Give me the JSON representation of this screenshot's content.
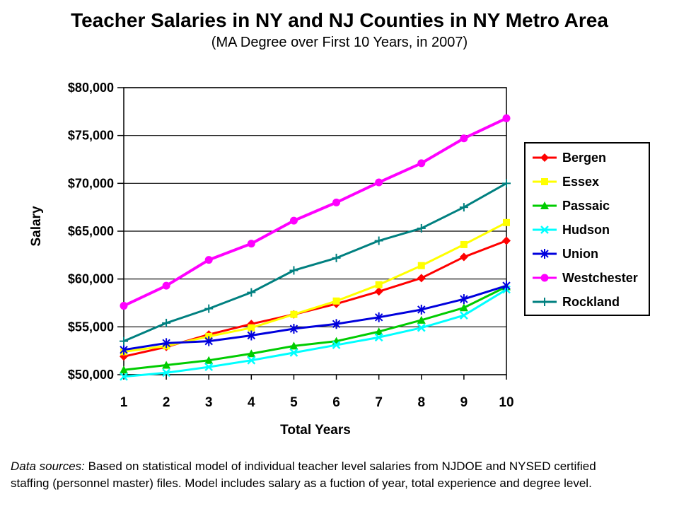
{
  "slide": {
    "title": "Teacher Salaries in NY and NJ Counties in NY Metro Area",
    "subtitle": "(MA Degree over First 10 Years, in 2007)",
    "footer": {
      "prefix": "Data sources:",
      "line1": " Based on statistical model of individual teacher level salaries from NJDOE and NYSED certified",
      "line2": "staffing (personnel master) files. Model includes salary as a fuction of year, total experience and degree level."
    }
  },
  "chart_data": {
    "type": "line",
    "title": "Teacher Salaries in NY and NJ Counties in NY Metro Area",
    "subtitle": "(MA Degree over First 10 Years, in 2007)",
    "xlabel": "Total Years",
    "ylabel": "Salary",
    "x": [
      1,
      2,
      3,
      4,
      5,
      6,
      7,
      8,
      9,
      10
    ],
    "ylim": [
      50000,
      80000
    ],
    "y_tick_step": 5000,
    "y_tick_labels": [
      "$50,000",
      "$55,000",
      "$60,000",
      "$65,000",
      "$70,000",
      "$75,000",
      "$80,000"
    ],
    "grid": "horizontal",
    "legend_position": "right",
    "series": [
      {
        "name": "Bergen",
        "color": "#FF0000",
        "marker": "diamond",
        "values": [
          51900,
          52900,
          54200,
          55300,
          56300,
          57400,
          58700,
          60100,
          62300,
          64000
        ]
      },
      {
        "name": "Essex",
        "color": "#FFFF00",
        "marker": "square",
        "values": [
          52400,
          53000,
          54000,
          54900,
          56300,
          57700,
          59400,
          61400,
          63600,
          65900
        ]
      },
      {
        "name": "Passaic",
        "color": "#00CC00",
        "marker": "triangle",
        "values": [
          50500,
          51000,
          51500,
          52200,
          53000,
          53500,
          54500,
          55700,
          57000,
          59200
        ]
      },
      {
        "name": "Hudson",
        "color": "#00FFFF",
        "marker": "x",
        "values": [
          49800,
          50200,
          50800,
          51500,
          52300,
          53100,
          53900,
          54900,
          56200,
          58900
        ]
      },
      {
        "name": "Union",
        "color": "#0000DD",
        "marker": "star",
        "values": [
          52600,
          53300,
          53500,
          54100,
          54800,
          55300,
          56000,
          56800,
          57900,
          59300
        ]
      },
      {
        "name": "Westchester",
        "color": "#FF00FF",
        "marker": "circle",
        "values": [
          57200,
          59300,
          62000,
          63700,
          66100,
          68000,
          70100,
          72100,
          74700,
          76800
        ]
      },
      {
        "name": "Rockland",
        "color": "#008080",
        "marker": "plus",
        "values": [
          53500,
          55400,
          56900,
          58600,
          60900,
          62200,
          64000,
          65300,
          67500,
          70000
        ]
      }
    ]
  }
}
